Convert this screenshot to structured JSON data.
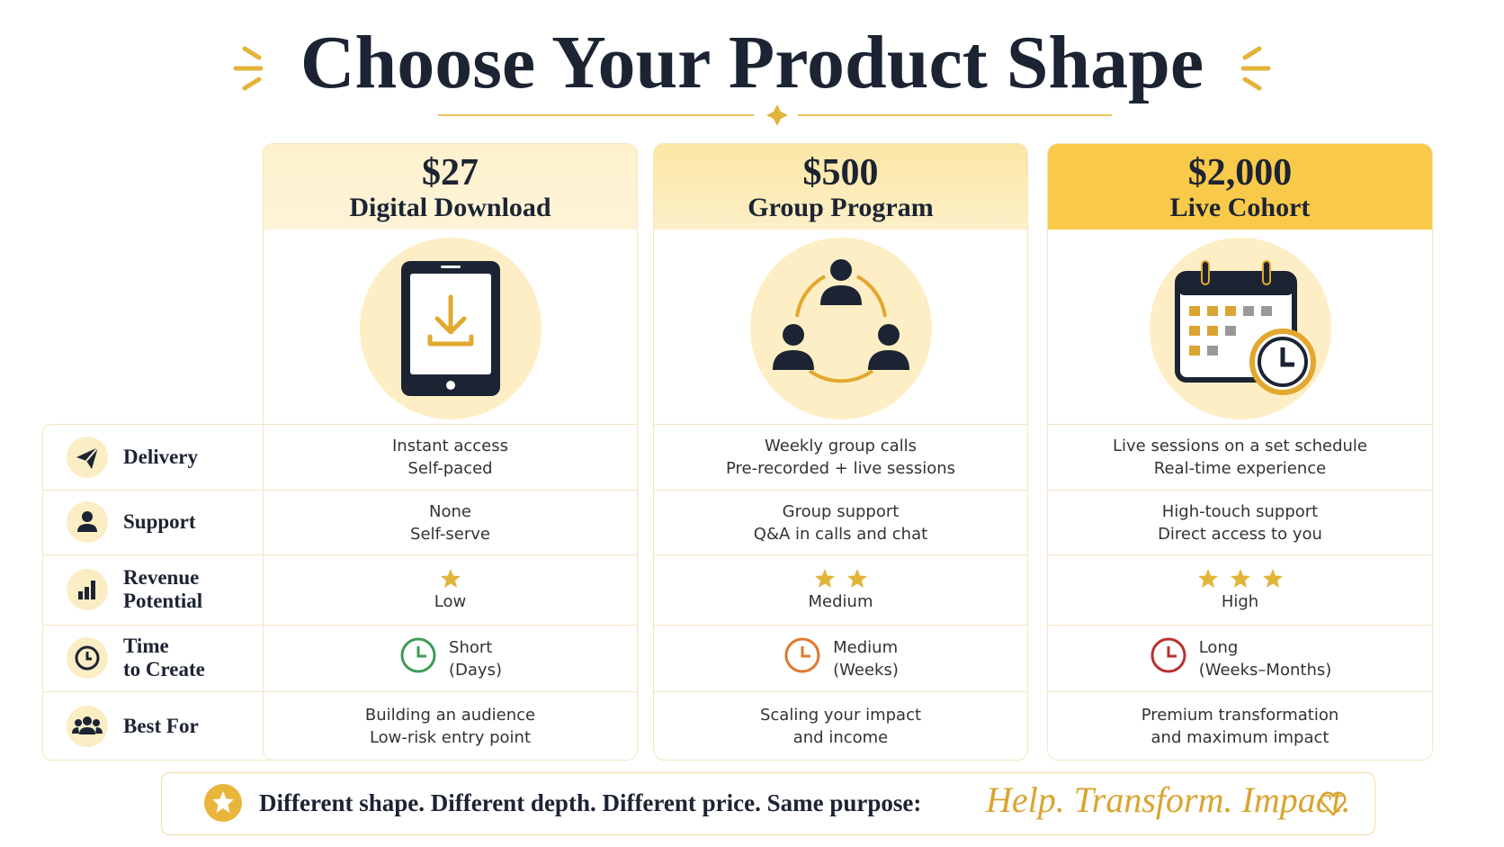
{
  "header": {
    "title": "Choose Your Product Shape"
  },
  "columns": [
    {
      "price": "$27",
      "name": "Digital Download"
    },
    {
      "price": "$500",
      "name": "Group Program"
    },
    {
      "price": "$2,000",
      "name": "Live Cohort"
    }
  ],
  "rows": [
    {
      "label": [
        "Delivery"
      ],
      "cells": [
        {
          "lines": [
            "Instant access",
            "Self-paced"
          ]
        },
        {
          "lines": [
            "Weekly group calls",
            "Pre-recorded + live sessions"
          ]
        },
        {
          "lines": [
            "Live sessions on a set schedule",
            "Real-time experience"
          ]
        }
      ]
    },
    {
      "label": [
        "Support"
      ],
      "cells": [
        {
          "lines": [
            "None",
            "Self-serve"
          ]
        },
        {
          "lines": [
            "Group support",
            "Q&A in calls and chat"
          ]
        },
        {
          "lines": [
            "High-touch support",
            "Direct access to you"
          ]
        }
      ]
    },
    {
      "label": [
        "Revenue",
        "Potential"
      ],
      "cells": [
        {
          "stars": 1,
          "lines": [
            "Low"
          ]
        },
        {
          "stars": 2,
          "lines": [
            "Medium"
          ]
        },
        {
          "stars": 3,
          "lines": [
            "High"
          ]
        }
      ]
    },
    {
      "label": [
        "Time",
        "to Create"
      ],
      "cells": [
        {
          "lines": [
            "Short",
            "(Days)"
          ]
        },
        {
          "lines": [
            "Medium",
            "(Weeks)"
          ]
        },
        {
          "lines": [
            "Long",
            "(Weeks–Months)"
          ]
        }
      ]
    },
    {
      "label": [
        "Best For"
      ],
      "cells": [
        {
          "lines": [
            "Building an audience",
            "Low-risk entry point"
          ]
        },
        {
          "lines": [
            "Scaling your impact",
            "and income"
          ]
        },
        {
          "lines": [
            "Premium transformation",
            "and maximum impact"
          ]
        }
      ]
    }
  ],
  "footer": {
    "tagline": "Different shape. Different depth. Different price. Same purpose:",
    "script": "Help. Transform. Impact."
  }
}
